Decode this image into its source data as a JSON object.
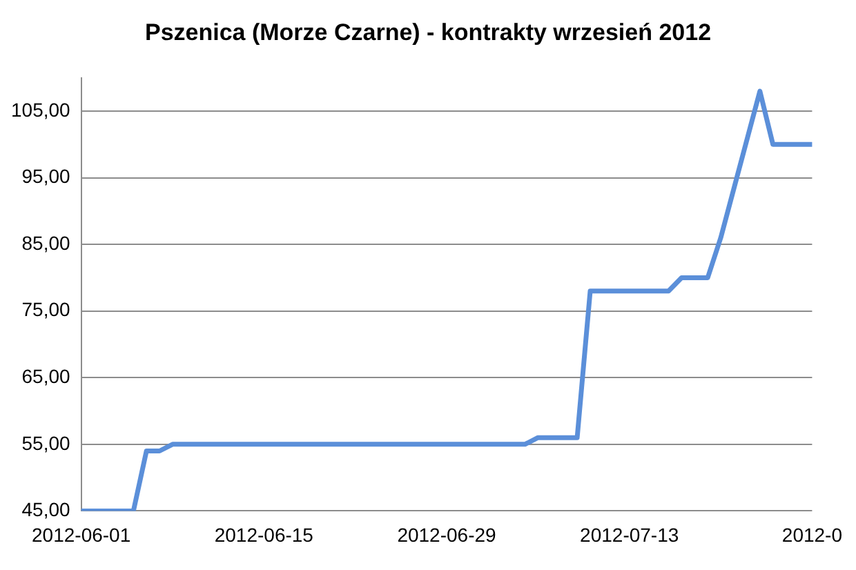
{
  "chart_data": {
    "type": "line",
    "title": "Pszenica (Morze Czarne) - kontrakty wrzesień 2012",
    "x": [
      "2012-06-01",
      "2012-06-05",
      "2012-06-06",
      "2012-06-07",
      "2012-06-08",
      "2012-07-05",
      "2012-07-06",
      "2012-07-09",
      "2012-07-10",
      "2012-07-16",
      "2012-07-17",
      "2012-07-19",
      "2012-07-20",
      "2012-07-23",
      "2012-07-24",
      "2012-07-27"
    ],
    "series": [
      {
        "color": "#5b8fd9",
        "values": [
          45,
          45,
          54,
          54,
          55,
          55,
          56,
          56,
          78,
          78,
          80,
          80,
          86,
          108,
          100,
          100
        ]
      }
    ],
    "xlim": [
      "2012-06-01",
      "2012-07-27"
    ],
    "xticks": [
      {
        "value": "2012-06-01",
        "label": "2012-06-01"
      },
      {
        "value": "2012-06-15",
        "label": "2012-06-15"
      },
      {
        "value": "2012-06-29",
        "label": "2012-06-29"
      },
      {
        "value": "2012-07-13",
        "label": "2012-07-13"
      },
      {
        "value": "2012-07-27",
        "label": "2012-0"
      }
    ],
    "ylim": [
      45,
      110
    ],
    "yticks": [
      {
        "value": 45,
        "label": "45,00"
      },
      {
        "value": 55,
        "label": "55,00"
      },
      {
        "value": 65,
        "label": "65,00"
      },
      {
        "value": 75,
        "label": "75,00"
      },
      {
        "value": 85,
        "label": "85,00"
      },
      {
        "value": 95,
        "label": "95,00"
      },
      {
        "value": 105,
        "label": "105,00"
      }
    ],
    "grid": "y",
    "legend": false,
    "marker": "none",
    "line_style": "solid"
  }
}
